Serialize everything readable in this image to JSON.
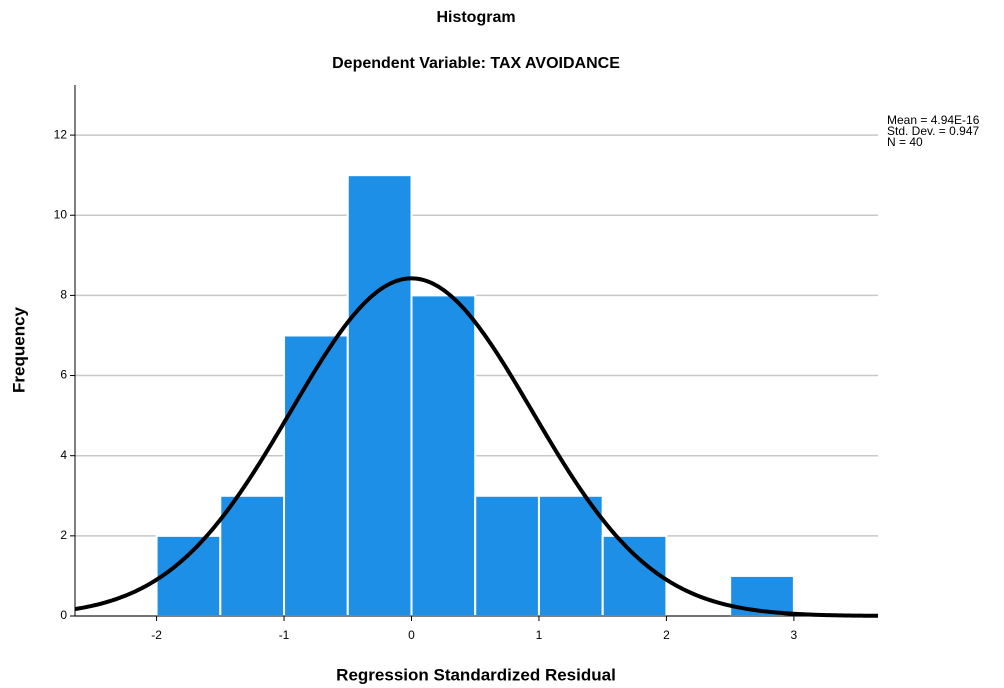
{
  "chart_data": {
    "type": "histogram",
    "title": "Histogram",
    "subtitle": "Dependent Variable: TAX AVOIDANCE",
    "x_label": "Regression Standardized Residual",
    "y_label": "Frequency",
    "bins": [
      -2,
      -1.5,
      -1,
      -0.5,
      0,
      0.5,
      1,
      1.5,
      2,
      2.5,
      3
    ],
    "values": [
      2,
      3,
      7,
      11,
      8,
      3,
      3,
      2,
      0,
      1
    ],
    "color": "#1e8fe6",
    "curve_color": "#000000",
    "xlim": [
      -2.64,
      3.66
    ],
    "ylim": [
      0,
      13.25
    ],
    "xticks": [
      -2,
      -1,
      0,
      1,
      2,
      3
    ],
    "yticks": [
      0,
      2,
      4,
      6,
      8,
      10,
      12
    ],
    "grid": true,
    "stats": {
      "mean": {
        "value": 4.94e-16,
        "label": "Mean = 4.94E-16"
      },
      "std": {
        "value": 0.947,
        "label": "Std. Dev. = 0.947"
      },
      "n": {
        "value": 40,
        "label": "N = 40"
      }
    }
  }
}
